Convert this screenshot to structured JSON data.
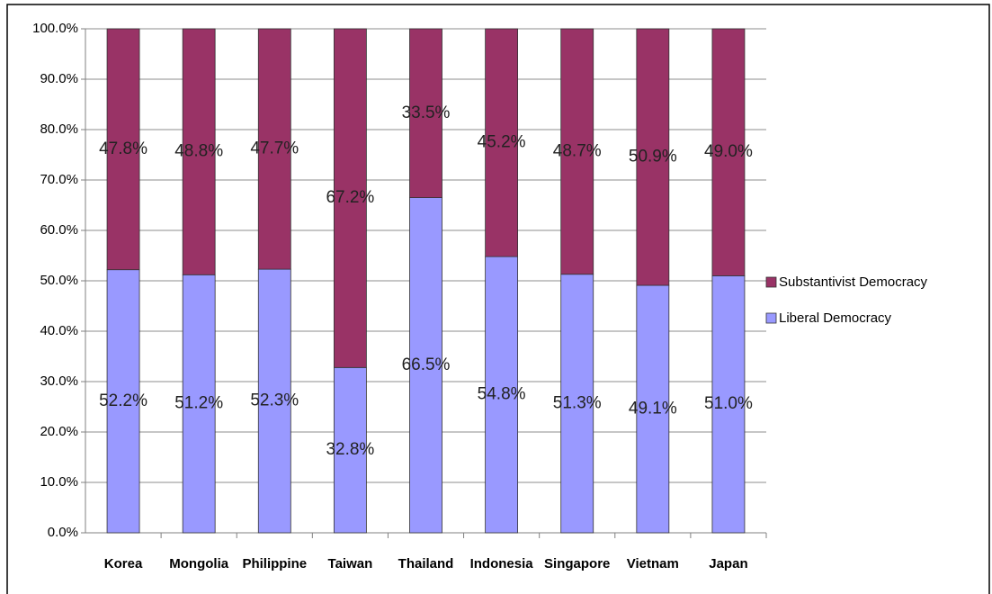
{
  "chart_data": {
    "type": "stacked_bar",
    "categories": [
      "Korea",
      "Mongolia",
      "Philippine",
      "Taiwan",
      "Thailand",
      "Indonesia",
      "Singapore",
      "Vietnam",
      "Japan"
    ],
    "series": [
      {
        "name": "Liberal Democracy",
        "color": "#9999ff",
        "values": [
          52.2,
          51.2,
          52.3,
          32.8,
          66.5,
          54.8,
          51.3,
          49.1,
          51.0
        ],
        "value_labels": [
          "52.2%",
          "51.2%",
          "52.3%",
          "32.8%",
          "66.5%",
          "54.8%",
          "51.3%",
          "49.1%",
          "51.0%"
        ]
      },
      {
        "name": "Substantivist Democracy",
        "color": "#993366",
        "values": [
          47.8,
          48.8,
          47.7,
          67.2,
          33.5,
          45.2,
          48.7,
          50.9,
          49.0
        ],
        "value_labels": [
          "47.8%",
          "48.8%",
          "47.7%",
          "67.2%",
          "33.5%",
          "45.2%",
          "48.7%",
          "50.9%",
          "49.0%"
        ]
      }
    ],
    "ylim": [
      0,
      100
    ],
    "yticks": [
      {
        "value": 0,
        "label": "0.0%"
      },
      {
        "value": 10,
        "label": "10.0%"
      },
      {
        "value": 20,
        "label": "20.0%"
      },
      {
        "value": 30,
        "label": "30.0%"
      },
      {
        "value": 40,
        "label": "40.0%"
      },
      {
        "value": 50,
        "label": "50.0%"
      },
      {
        "value": 60,
        "label": "60.0%"
      },
      {
        "value": 70,
        "label": "70.0%"
      },
      {
        "value": 80,
        "label": "80.0%"
      },
      {
        "value": 90,
        "label": "90.0%"
      },
      {
        "value": 100,
        "label": "100.0%"
      }
    ],
    "grid": true,
    "legend": "right"
  }
}
